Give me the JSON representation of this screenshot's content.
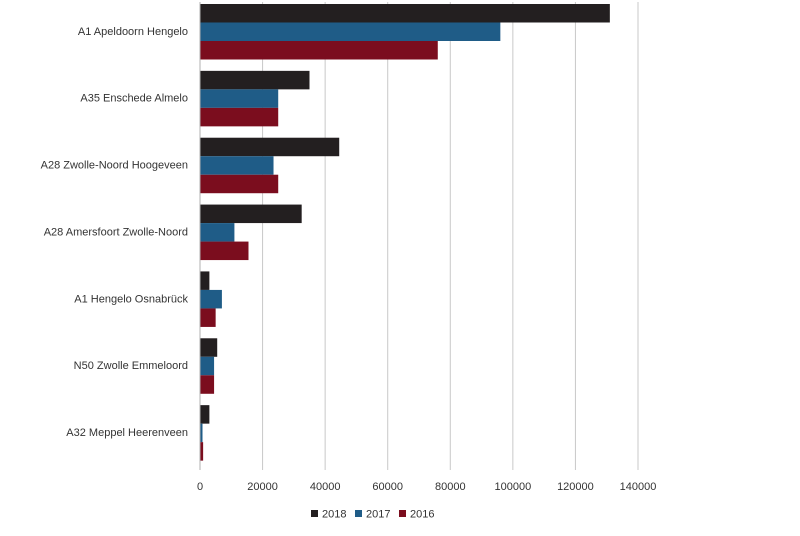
{
  "chart_data": {
    "type": "bar",
    "orientation": "horizontal",
    "categories": [
      "A1 Apeldoorn Hengelo",
      "A35 Enschede Almelo",
      "A28 Zwolle-Noord Hoogeveen",
      "A28 Amersfoort Zwolle-Noord",
      "A1 Hengelo Osnabrück",
      "N50 Zwolle Emmeloord",
      "A32 Meppel Heerenveen"
    ],
    "series": [
      {
        "name": "2018",
        "color": "#231f20",
        "values": [
          131000,
          35000,
          44500,
          32500,
          3000,
          5500,
          3000
        ]
      },
      {
        "name": "2017",
        "color": "#1f5c87",
        "values": [
          96000,
          25000,
          23500,
          11000,
          7000,
          4500,
          800
        ]
      },
      {
        "name": "2016",
        "color": "#7b0d1e",
        "values": [
          76000,
          25000,
          25000,
          15500,
          5000,
          4500,
          1000
        ]
      }
    ],
    "xlim": [
      0,
      140000
    ],
    "xticks": [
      "0",
      "20000",
      "40000",
      "60000",
      "80000",
      "100000",
      "120000",
      "140000"
    ],
    "grid": "vertical",
    "legend": "bottom-center",
    "title": "",
    "xlabel": "",
    "ylabel": ""
  }
}
